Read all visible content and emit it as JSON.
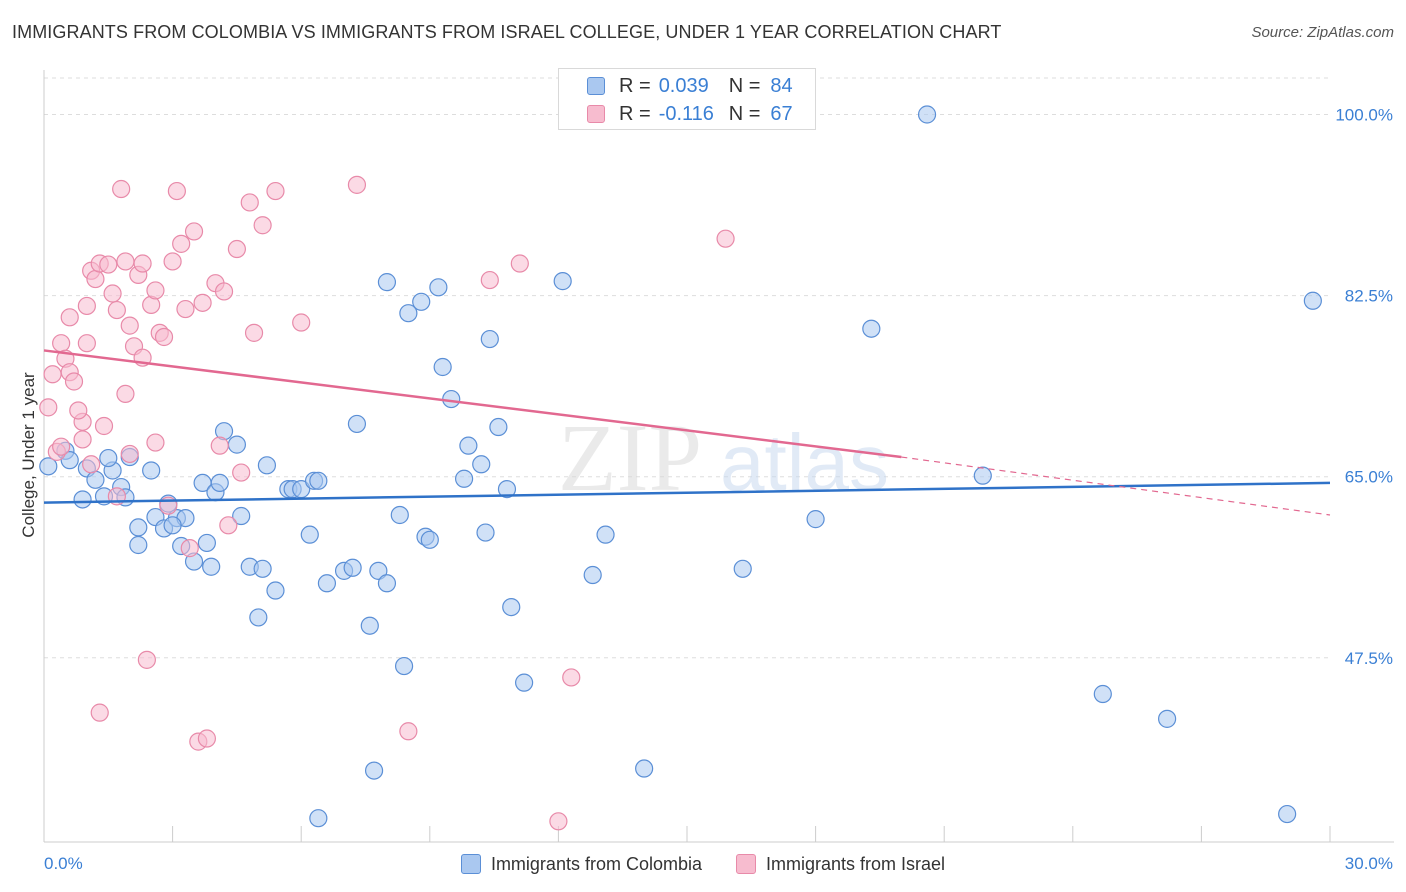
{
  "header": {
    "title": "IMMIGRANTS FROM COLOMBIA VS IMMIGRANTS FROM ISRAEL COLLEGE, UNDER 1 YEAR CORRELATION CHART",
    "source": "Source: ZipAtlas.com"
  },
  "watermark": {
    "zip": "ZIP",
    "atlas": "atlas"
  },
  "legend_top": {
    "rows": [
      {
        "r_label": "R =",
        "r_value": "0.039",
        "n_label": "N =",
        "n_value": "84"
      },
      {
        "r_label": "R =",
        "r_value": "-0.116",
        "n_label": "N =",
        "n_value": "67"
      }
    ]
  },
  "colors": {
    "colombia_fill": "#aac8f0",
    "colombia_stroke": "#5b8fd6",
    "colombia_line": "#2f72c8",
    "israel_fill": "#f7bccf",
    "israel_stroke": "#e88aa9",
    "israel_line": "#e26890",
    "axis_text": "#3a7fd4",
    "grid": "#dddddd"
  },
  "chart_data": {
    "type": "scatter",
    "title": "IMMIGRANTS FROM COLOMBIA VS IMMIGRANTS FROM ISRAEL COLLEGE, UNDER 1 YEAR CORRELATION CHART",
    "xlabel": "",
    "ylabel": "College, Under 1 year",
    "xlim": [
      0,
      30
    ],
    "ylim": [
      29.7,
      104.3
    ],
    "x_tick_labels": [
      "0.0%",
      "30.0%"
    ],
    "y_ticks": [
      47.5,
      65.0,
      82.5,
      100.0
    ],
    "y_tick_labels": [
      "47.5%",
      "65.0%",
      "82.5%",
      "100.0%"
    ],
    "grid": true,
    "legend_position": "top-center",
    "series": [
      {
        "name": "Immigrants from Colombia",
        "stats": {
          "R": 0.039,
          "N": 84
        },
        "trend": {
          "x": [
            0,
            30
          ],
          "y": [
            62.5,
            64.4
          ]
        },
        "points": [
          [
            0.5,
            67.5
          ],
          [
            0.6,
            66.6
          ],
          [
            0.9,
            62.8
          ],
          [
            1.0,
            65.8
          ],
          [
            1.2,
            64.7
          ],
          [
            1.4,
            63.1
          ],
          [
            1.6,
            65.6
          ],
          [
            1.8,
            64.0
          ],
          [
            1.9,
            63.0
          ],
          [
            2.0,
            66.9
          ],
          [
            2.2,
            60.1
          ],
          [
            2.2,
            58.4
          ],
          [
            2.5,
            65.6
          ],
          [
            2.6,
            61.1
          ],
          [
            2.8,
            60.0
          ],
          [
            2.9,
            62.4
          ],
          [
            3.1,
            61.0
          ],
          [
            3.2,
            58.3
          ],
          [
            3.3,
            61.0
          ],
          [
            3.5,
            56.8
          ],
          [
            3.7,
            64.4
          ],
          [
            3.8,
            58.6
          ],
          [
            3.9,
            56.3
          ],
          [
            4.0,
            63.5
          ],
          [
            4.1,
            64.4
          ],
          [
            4.2,
            69.4
          ],
          [
            4.5,
            68.1
          ],
          [
            4.6,
            61.2
          ],
          [
            4.8,
            56.3
          ],
          [
            5.0,
            51.4
          ],
          [
            5.1,
            56.1
          ],
          [
            5.2,
            66.1
          ],
          [
            5.4,
            54.0
          ],
          [
            5.7,
            63.8
          ],
          [
            5.8,
            63.8
          ],
          [
            6.0,
            63.8
          ],
          [
            6.2,
            59.4
          ],
          [
            6.3,
            64.6
          ],
          [
            6.4,
            32.0
          ],
          [
            6.4,
            64.6
          ],
          [
            6.6,
            54.7
          ],
          [
            7.0,
            55.9
          ],
          [
            7.3,
            70.1
          ],
          [
            7.6,
            50.6
          ],
          [
            7.7,
            36.6
          ],
          [
            7.8,
            55.9
          ],
          [
            8.0,
            54.7
          ],
          [
            8.0,
            83.8
          ],
          [
            8.3,
            61.3
          ],
          [
            8.4,
            46.7
          ],
          [
            8.5,
            80.8
          ],
          [
            8.8,
            81.9
          ],
          [
            8.9,
            59.2
          ],
          [
            9.2,
            83.3
          ],
          [
            9.3,
            75.6
          ],
          [
            9.5,
            72.5
          ],
          [
            9.8,
            64.8
          ],
          [
            9.9,
            68.0
          ],
          [
            10.2,
            66.2
          ],
          [
            10.3,
            59.6
          ],
          [
            10.4,
            78.3
          ],
          [
            10.6,
            69.8
          ],
          [
            10.8,
            63.8
          ],
          [
            10.9,
            52.4
          ],
          [
            11.2,
            45.1
          ],
          [
            12.1,
            83.9
          ],
          [
            12.8,
            55.5
          ],
          [
            13.1,
            59.4
          ],
          [
            14.0,
            36.8
          ],
          [
            14.1,
            100.0
          ],
          [
            16.3,
            56.1
          ],
          [
            18.0,
            60.9
          ],
          [
            19.3,
            79.3
          ],
          [
            20.6,
            100.0
          ],
          [
            21.9,
            65.1
          ],
          [
            24.7,
            44.0
          ],
          [
            26.2,
            41.6
          ],
          [
            29.0,
            32.4
          ],
          [
            29.6,
            82.0
          ],
          [
            0.1,
            66.0
          ],
          [
            1.5,
            66.8
          ],
          [
            3.0,
            60.3
          ],
          [
            7.2,
            56.2
          ],
          [
            9.0,
            58.9
          ]
        ]
      },
      {
        "name": "Immigrants from Israel",
        "stats": {
          "R": -0.116,
          "N": 67
        },
        "trend": {
          "x": [
            0,
            20.0
          ],
          "y": [
            77.2,
            66.9
          ],
          "dashed_to": [
            30,
            61.3
          ]
        },
        "points": [
          [
            0.1,
            71.7
          ],
          [
            0.2,
            74.9
          ],
          [
            0.3,
            67.4
          ],
          [
            0.4,
            77.9
          ],
          [
            0.5,
            76.4
          ],
          [
            0.6,
            75.1
          ],
          [
            0.7,
            74.2
          ],
          [
            0.9,
            68.6
          ],
          [
            0.9,
            70.3
          ],
          [
            1.0,
            77.9
          ],
          [
            1.0,
            81.5
          ],
          [
            1.1,
            84.9
          ],
          [
            1.2,
            84.1
          ],
          [
            1.3,
            42.2
          ],
          [
            1.3,
            85.6
          ],
          [
            1.5,
            85.5
          ],
          [
            1.6,
            82.7
          ],
          [
            1.7,
            81.1
          ],
          [
            1.7,
            63.1
          ],
          [
            1.8,
            92.8
          ],
          [
            1.9,
            85.8
          ],
          [
            2.0,
            79.6
          ],
          [
            2.0,
            67.2
          ],
          [
            2.1,
            77.6
          ],
          [
            2.2,
            84.5
          ],
          [
            2.3,
            85.6
          ],
          [
            2.4,
            47.3
          ],
          [
            2.5,
            81.6
          ],
          [
            2.6,
            83.0
          ],
          [
            2.7,
            78.9
          ],
          [
            2.8,
            78.5
          ],
          [
            2.9,
            62.2
          ],
          [
            3.0,
            85.8
          ],
          [
            3.1,
            92.6
          ],
          [
            3.2,
            87.5
          ],
          [
            3.3,
            81.2
          ],
          [
            3.5,
            88.7
          ],
          [
            3.6,
            39.4
          ],
          [
            3.7,
            81.8
          ],
          [
            3.8,
            39.7
          ],
          [
            4.0,
            83.7
          ],
          [
            4.1,
            68.0
          ],
          [
            4.2,
            82.9
          ],
          [
            4.3,
            60.3
          ],
          [
            4.5,
            87.0
          ],
          [
            4.8,
            91.5
          ],
          [
            4.9,
            78.9
          ],
          [
            5.1,
            89.3
          ],
          [
            5.4,
            92.6
          ],
          [
            6.0,
            79.9
          ],
          [
            7.3,
            93.2
          ],
          [
            8.5,
            40.4
          ],
          [
            10.4,
            84.0
          ],
          [
            11.1,
            85.6
          ],
          [
            12.0,
            31.7
          ],
          [
            12.3,
            45.6
          ],
          [
            15.9,
            88.0
          ],
          [
            1.4,
            69.9
          ],
          [
            0.8,
            71.4
          ],
          [
            2.6,
            68.3
          ],
          [
            0.4,
            67.9
          ],
          [
            1.1,
            66.2
          ],
          [
            3.4,
            58.1
          ],
          [
            4.6,
            65.4
          ],
          [
            1.9,
            73.0
          ],
          [
            0.6,
            80.4
          ],
          [
            2.3,
            76.5
          ]
        ]
      }
    ]
  },
  "legend_bottom": {
    "items": [
      {
        "label": "Immigrants from Colombia"
      },
      {
        "label": "Immigrants from Israel"
      }
    ]
  }
}
